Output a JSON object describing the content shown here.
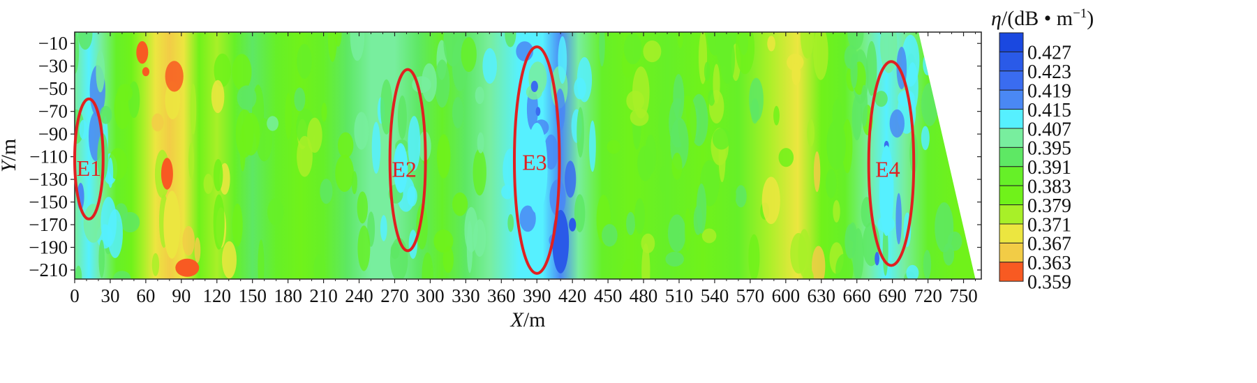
{
  "chart_data": {
    "type": "heatmap",
    "title": "",
    "xlabel": {
      "var": "X",
      "unit": "/m"
    },
    "ylabel": {
      "var": "Y",
      "unit": "/m"
    },
    "xlim": [
      0,
      765
    ],
    "ylim": [
      -218,
      0
    ],
    "x_ticks": [
      0,
      30,
      60,
      90,
      120,
      150,
      180,
      210,
      240,
      270,
      300,
      330,
      360,
      390,
      420,
      450,
      480,
      510,
      540,
      570,
      600,
      630,
      660,
      690,
      720,
      750
    ],
    "y_ticks": [
      -10,
      -30,
      -50,
      -70,
      -90,
      -110,
      -130,
      -150,
      -170,
      -190,
      -210
    ],
    "colorbar": {
      "title": {
        "var": "η",
        "unit": "/(dB • m",
        "sup": "−1",
        "close": ")"
      },
      "levels": [
        "0.427",
        "0.423",
        "0.419",
        "0.415",
        "0.407",
        "0.395",
        "0.391",
        "0.383",
        "0.379",
        "0.371",
        "0.367",
        "0.363",
        "0.359"
      ],
      "colors": [
        "#1a48e0",
        "#2a5ae8",
        "#3a6cf0",
        "#4a88f4",
        "#56f0ff",
        "#78ee9e",
        "#5ee864",
        "#66f028",
        "#70f21a",
        "#a8f028",
        "#ece640",
        "#f2cc46",
        "#f85a22"
      ]
    },
    "profile": [
      {
        "x": 0,
        "level": 0.395
      },
      {
        "x": 12,
        "level": 0.407
      },
      {
        "x": 22,
        "level": 0.395
      },
      {
        "x": 35,
        "level": 0.383
      },
      {
        "x": 48,
        "level": 0.379
      },
      {
        "x": 58,
        "level": 0.371
      },
      {
        "x": 68,
        "level": 0.367
      },
      {
        "x": 80,
        "level": 0.363
      },
      {
        "x": 92,
        "level": 0.367
      },
      {
        "x": 105,
        "level": 0.379
      },
      {
        "x": 120,
        "level": 0.371
      },
      {
        "x": 135,
        "level": 0.383
      },
      {
        "x": 150,
        "level": 0.391
      },
      {
        "x": 170,
        "level": 0.383
      },
      {
        "x": 190,
        "level": 0.379
      },
      {
        "x": 210,
        "level": 0.383
      },
      {
        "x": 230,
        "level": 0.391
      },
      {
        "x": 250,
        "level": 0.395
      },
      {
        "x": 270,
        "level": 0.395
      },
      {
        "x": 290,
        "level": 0.391
      },
      {
        "x": 310,
        "level": 0.383
      },
      {
        "x": 330,
        "level": 0.391
      },
      {
        "x": 350,
        "level": 0.395
      },
      {
        "x": 375,
        "level": 0.407
      },
      {
        "x": 395,
        "level": 0.407
      },
      {
        "x": 410,
        "level": 0.415
      },
      {
        "x": 425,
        "level": 0.395
      },
      {
        "x": 445,
        "level": 0.383
      },
      {
        "x": 470,
        "level": 0.379
      },
      {
        "x": 500,
        "level": 0.383
      },
      {
        "x": 530,
        "level": 0.379
      },
      {
        "x": 560,
        "level": 0.383
      },
      {
        "x": 585,
        "level": 0.371
      },
      {
        "x": 610,
        "level": 0.367
      },
      {
        "x": 630,
        "level": 0.379
      },
      {
        "x": 650,
        "level": 0.383
      },
      {
        "x": 670,
        "level": 0.395
      },
      {
        "x": 685,
        "level": 0.407
      },
      {
        "x": 700,
        "level": 0.395
      },
      {
        "x": 720,
        "level": 0.383
      },
      {
        "x": 745,
        "level": 0.379
      },
      {
        "x": 765,
        "level": 0.379
      }
    ],
    "anomalies": [
      {
        "label": "E1",
        "cx": 12,
        "cy": -112,
        "rx": 12,
        "ry": 53,
        "label_x": 12,
        "label_y": -120
      },
      {
        "label": "E2",
        "cx": 281,
        "cy": -113,
        "rx": 15,
        "ry": 80,
        "label_x": 278,
        "label_y": -121
      },
      {
        "label": "E3",
        "cx": 390,
        "cy": -113,
        "rx": 19,
        "ry": 100,
        "label_x": 388,
        "label_y": -115
      },
      {
        "label": "E4",
        "cx": 689,
        "cy": -116,
        "rx": 19,
        "ry": 90,
        "label_x": 686,
        "label_y": -121
      }
    ]
  }
}
